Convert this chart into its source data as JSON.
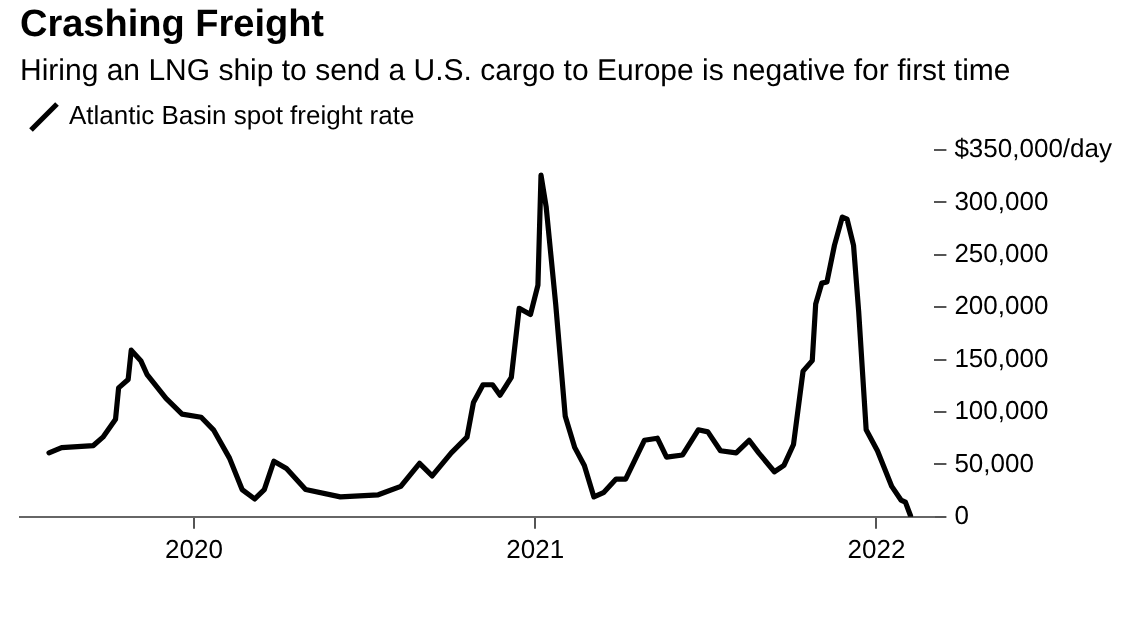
{
  "chart_data": {
    "type": "line",
    "title": "Crashing Freight",
    "subtitle": "Hiring an LNG ship to send a U.S. cargo to Europe is negative for first time",
    "series": [
      {
        "name": "Atlantic Basin spot freight rate",
        "color": "#000000",
        "x": [
          2019.575,
          2019.612,
          2019.705,
          2019.733,
          2019.77,
          2019.779,
          2019.807,
          2019.816,
          2019.844,
          2019.862,
          2019.918,
          2019.965,
          2020.021,
          2020.057,
          2020.104,
          2020.141,
          2020.178,
          2020.206,
          2020.234,
          2020.271,
          2020.327,
          2020.429,
          2020.54,
          2020.606,
          2020.661,
          2020.698,
          2020.754,
          2020.8,
          2020.819,
          2020.847,
          2020.875,
          2020.897,
          2020.93,
          2020.953,
          2020.986,
          2021.008,
          2021.017,
          2021.032,
          2021.06,
          2021.088,
          2021.116,
          2021.144,
          2021.172,
          2021.2,
          2021.237,
          2021.265,
          2021.32,
          2021.358,
          2021.385,
          2021.432,
          2021.478,
          2021.506,
          2021.543,
          2021.589,
          2021.627,
          2021.655,
          2021.701,
          2021.729,
          2021.757,
          2021.785,
          2021.812,
          2021.822,
          2021.84,
          2021.855,
          2021.877,
          2021.9,
          2021.914,
          2021.933,
          2021.948,
          2021.97,
          2022.003,
          2022.045,
          2022.072,
          2022.085,
          2022.1
        ],
        "values": [
          61000,
          66000,
          68000,
          76000,
          93000,
          123000,
          131000,
          159000,
          149000,
          136000,
          113000,
          98000,
          95000,
          83000,
          56000,
          26000,
          17000,
          26000,
          53000,
          46000,
          26000,
          19000,
          21000,
          29000,
          51000,
          39000,
          61000,
          76000,
          109000,
          126000,
          126000,
          116000,
          133000,
          199000,
          193000,
          221000,
          326000,
          296000,
          203000,
          96000,
          66000,
          49000,
          19000,
          23000,
          36000,
          36000,
          73000,
          75000,
          57000,
          59000,
          83000,
          81000,
          63000,
          61000,
          73000,
          61000,
          43000,
          49000,
          69000,
          139000,
          149000,
          203000,
          223000,
          224000,
          259000,
          286000,
          284000,
          259000,
          196000,
          83000,
          63000,
          29000,
          16000,
          14000,
          1000
        ]
      }
    ],
    "xlim": [
      2019.49,
      2022.17
    ],
    "xticks": [
      {
        "value": 2020,
        "label": "2020"
      },
      {
        "value": 2021,
        "label": "2021"
      },
      {
        "value": 2022,
        "label": "2022"
      }
    ],
    "ylim": [
      0,
      350000
    ],
    "yticks": [
      0,
      {
        "value": 50000,
        "label": "50,000"
      },
      {
        "value": 100000,
        "label": "100,000"
      },
      {
        "value": 150000,
        "label": "150,000"
      },
      {
        "value": 200000,
        "label": "200,000"
      },
      {
        "value": 250000,
        "label": "250,000"
      },
      {
        "value": 300000,
        "label": "300,000"
      },
      {
        "value": 350000,
        "label": "$350,000/day"
      }
    ],
    "legend": "top left",
    "marker": "none",
    "line_style": "solid",
    "grid": false
  }
}
